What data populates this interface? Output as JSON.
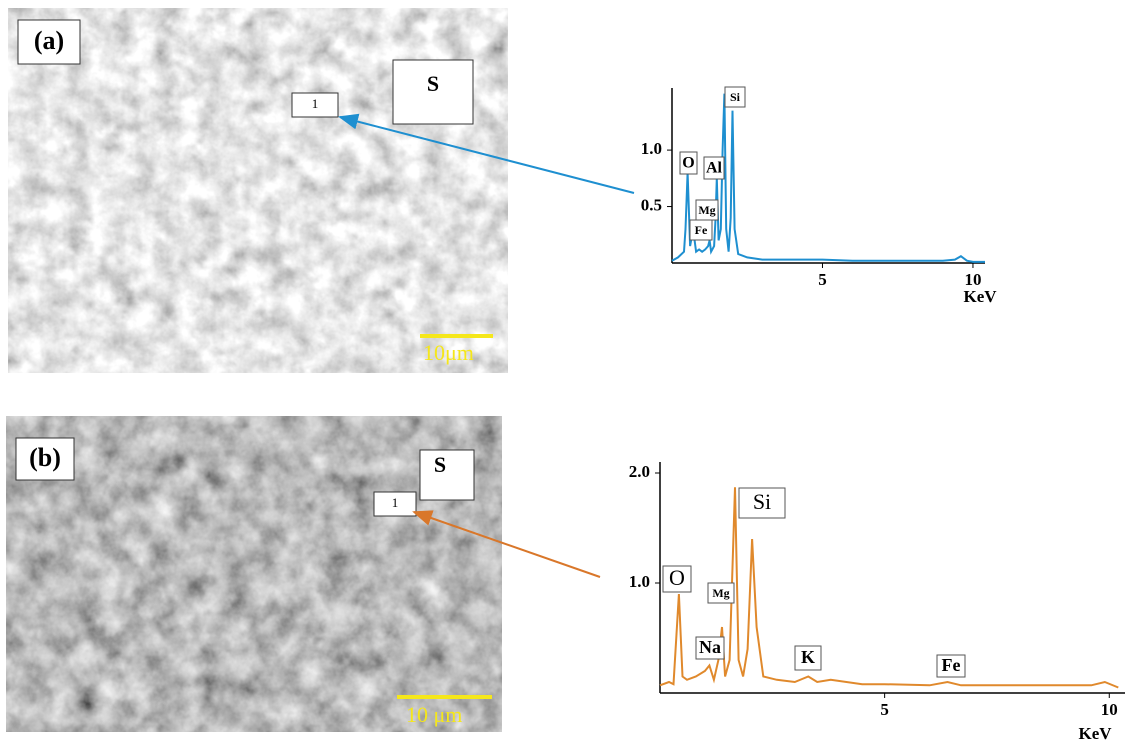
{
  "panels": [
    {
      "label": "(a)",
      "region": "S",
      "point": "1",
      "scale_bar": "10μm"
    },
    {
      "label": "(b)",
      "region": "S",
      "point": "1",
      "scale_bar": "10 μm"
    }
  ],
  "chart_data": [
    {
      "type": "line",
      "xlabel": "KeV",
      "color": "#1e8fd0",
      "x": [
        0,
        0.2,
        0.4,
        0.45,
        0.52,
        0.6,
        0.7,
        0.8,
        0.9,
        1.0,
        1.1,
        1.2,
        1.25,
        1.3,
        1.4,
        1.45,
        1.49,
        1.55,
        1.62,
        1.68,
        1.74,
        1.8,
        1.88,
        1.95,
        2.01,
        2.08,
        2.2,
        2.5,
        3,
        4,
        5,
        6,
        7,
        8,
        9,
        9.4,
        9.6,
        9.8,
        10,
        10.4
      ],
      "values": [
        0.02,
        0.05,
        0.1,
        0.3,
        0.8,
        0.15,
        0.3,
        0.1,
        0.12,
        0.1,
        0.12,
        0.15,
        0.2,
        0.1,
        0.15,
        0.4,
        0.75,
        0.2,
        0.3,
        1.0,
        1.5,
        0.3,
        0.1,
        0.4,
        1.35,
        0.3,
        0.08,
        0.05,
        0.03,
        0.03,
        0.03,
        0.02,
        0.02,
        0.02,
        0.02,
        0.03,
        0.06,
        0.02,
        0.01,
        0.01
      ],
      "xlim": [
        0,
        10.4
      ],
      "ylim": [
        0,
        1.55
      ],
      "xticks": [
        5,
        10
      ],
      "yticks": [
        0.5,
        {
          "value": 1,
          "label": "1.0"
        }
      ],
      "annotations": [
        "O",
        "Al",
        "Si",
        "Mg",
        "Fe"
      ]
    },
    {
      "type": "line",
      "xlabel": "KeV",
      "color": "#e0892c",
      "x": [
        0,
        0.2,
        0.3,
        0.42,
        0.5,
        0.6,
        0.8,
        1.0,
        1.1,
        1.2,
        1.3,
        1.38,
        1.45,
        1.55,
        1.67,
        1.75,
        1.85,
        1.95,
        2.05,
        2.15,
        2.3,
        2.6,
        3.0,
        3.3,
        3.5,
        3.8,
        4.5,
        5,
        6,
        6.4,
        6.7,
        8,
        9,
        9.6,
        9.9,
        10.2
      ],
      "values": [
        0.07,
        0.1,
        0.08,
        0.9,
        0.15,
        0.12,
        0.15,
        0.2,
        0.25,
        0.12,
        0.3,
        0.6,
        0.15,
        0.3,
        1.87,
        0.3,
        0.15,
        0.4,
        1.4,
        0.6,
        0.15,
        0.12,
        0.1,
        0.15,
        0.1,
        0.12,
        0.08,
        0.08,
        0.07,
        0.1,
        0.07,
        0.07,
        0.07,
        0.07,
        0.1,
        0.05
      ],
      "xlim": [
        0,
        10.35
      ],
      "ylim": [
        0,
        2.1
      ],
      "xticks": [
        5,
        10
      ],
      "yticks": [
        {
          "value": 1,
          "label": "1.0"
        },
        {
          "value": 2,
          "label": "2.0"
        }
      ],
      "annotations": [
        "O",
        "Si",
        "Mg",
        "Na",
        "K",
        "Fe"
      ]
    }
  ]
}
